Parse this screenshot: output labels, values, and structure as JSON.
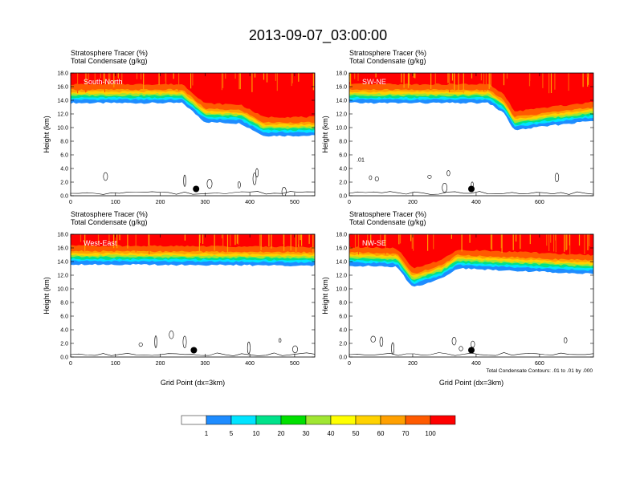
{
  "figure": {
    "title": "2013-09-07_03:00:00",
    "footnote": "Total Condensate Contours: .01 to .01 by .000"
  },
  "colorbar": {
    "colors": [
      "#ffffff",
      "#1e8cff",
      "#00e4ff",
      "#00e28a",
      "#00e000",
      "#a0e632",
      "#ffff00",
      "#ffd200",
      "#ffa000",
      "#ff5a00",
      "#ff0000"
    ],
    "labels": [
      "1",
      "5",
      "10",
      "20",
      "30",
      "40",
      "50",
      "60",
      "70",
      "100"
    ]
  },
  "chart_data": [
    {
      "type": "heatmap",
      "panel": "South-North",
      "title_line1": "Stratosphere Tracer   (%)",
      "title_line2": "Total Condensate   (g/kg)",
      "xlabel": "",
      "ylabel": "Height (km)",
      "xlim": [
        0,
        545
      ],
      "ylim": [
        0,
        18
      ],
      "xticks": [
        0,
        100,
        200,
        300,
        400,
        500
      ],
      "yticks": [
        "0.0",
        "2.0",
        "4.0",
        "6.0",
        "8.0",
        "10.0",
        "12.0",
        "14.0",
        "16.0",
        "18.0"
      ],
      "contour_label": "",
      "tropopause_height": [
        [
          0,
          13.6
        ],
        [
          250,
          13.6
        ],
        [
          300,
          10.8
        ],
        [
          380,
          10.6
        ],
        [
          430,
          8.8
        ],
        [
          545,
          8.8
        ]
      ],
      "marker": {
        "x": 280,
        "y": 1.0
      }
    },
    {
      "type": "heatmap",
      "panel": "SW-NE",
      "title_line1": "Stratosphere Tracer   (%)",
      "title_line2": "Total Condensate   (g/kg)",
      "xlabel": "",
      "ylabel": "Height (km)",
      "xlim": [
        0,
        770
      ],
      "ylim": [
        0,
        18
      ],
      "xticks": [
        0,
        200,
        400,
        600
      ],
      "yticks": [
        "0.0",
        "2.0",
        "4.0",
        "6.0",
        "8.0",
        "10.0",
        "12.0",
        "14.0",
        "16.0",
        "18.0"
      ],
      "contour_label": ".01",
      "tropopause_height": [
        [
          0,
          13.6
        ],
        [
          440,
          13.6
        ],
        [
          490,
          12.0
        ],
        [
          520,
          9.6
        ],
        [
          620,
          10.2
        ],
        [
          770,
          11.0
        ]
      ],
      "marker": {
        "x": 385,
        "y": 1.0
      }
    },
    {
      "type": "heatmap",
      "panel": "West-East",
      "title_line1": "Stratosphere Tracer   (%)",
      "title_line2": "Total Condensate   (g/kg)",
      "xlabel": "Grid Point (dx=3km)",
      "ylabel": "Height (km)",
      "xlim": [
        0,
        545
      ],
      "ylim": [
        0,
        18
      ],
      "xticks": [
        0,
        100,
        200,
        300,
        400,
        500
      ],
      "yticks": [
        "0.0",
        "2.0",
        "4.0",
        "6.0",
        "8.0",
        "10.0",
        "12.0",
        "14.0",
        "16.0",
        "18.0"
      ],
      "contour_label": "",
      "tropopause_height": [
        [
          0,
          13.6
        ],
        [
          545,
          13.4
        ]
      ],
      "marker": {
        "x": 275,
        "y": 1.0
      }
    },
    {
      "type": "heatmap",
      "panel": "NW-SE",
      "title_line1": "Stratosphere Tracer   (%)",
      "title_line2": "Total Condensate   (g/kg)",
      "xlabel": "Grid Point (dx=3km)",
      "ylabel": "Height (km)",
      "xlim": [
        0,
        770
      ],
      "ylim": [
        0,
        18
      ],
      "xticks": [
        0,
        200,
        400,
        600
      ],
      "yticks": [
        "0.0",
        "2.0",
        "4.0",
        "6.0",
        "8.0",
        "10.0",
        "12.0",
        "14.0",
        "16.0",
        "18.0"
      ],
      "contour_label": "",
      "tropopause_height": [
        [
          0,
          13.4
        ],
        [
          150,
          13.2
        ],
        [
          200,
          10.2
        ],
        [
          290,
          11.5
        ],
        [
          340,
          13.0
        ],
        [
          770,
          12.2
        ]
      ],
      "marker": {
        "x": 385,
        "y": 1.0
      }
    }
  ]
}
